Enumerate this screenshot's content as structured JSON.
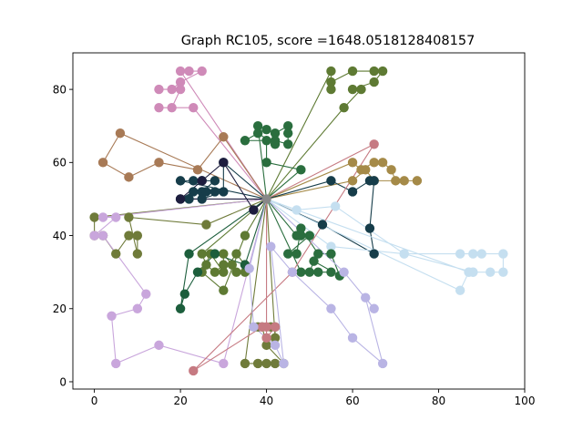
{
  "chart_data": {
    "type": "scatter",
    "title": "Graph RC105, score =1648.0518128408157",
    "xlabel": "",
    "ylabel": "",
    "xlim": [
      -5,
      100
    ],
    "ylim": [
      -2,
      90
    ],
    "xticks": [
      0,
      20,
      40,
      60,
      80,
      100
    ],
    "yticks": [
      0,
      20,
      40,
      60,
      80
    ],
    "grid": false,
    "depot": [
      40,
      50
    ],
    "routes": [
      {
        "color": "#6f7b3a",
        "points": [
          [
            35,
            5
          ],
          [
            38,
            5
          ],
          [
            40,
            5
          ],
          [
            42,
            5
          ],
          [
            44,
            5
          ],
          [
            40,
            10
          ],
          [
            39,
            15
          ],
          [
            38,
            15
          ],
          [
            41,
            15
          ],
          [
            42,
            15
          ],
          [
            42,
            12
          ]
        ]
      },
      {
        "color": "#cf8ab8",
        "points": [
          [
            20,
            85
          ],
          [
            22,
            85
          ],
          [
            25,
            85
          ],
          [
            20,
            82
          ],
          [
            18,
            80
          ],
          [
            15,
            80
          ],
          [
            20,
            80
          ],
          [
            18,
            75
          ],
          [
            15,
            75
          ],
          [
            23,
            75
          ]
        ]
      },
      {
        "color": "#5e7a33",
        "points": [
          [
            55,
            85
          ],
          [
            55,
            80
          ],
          [
            55,
            82
          ],
          [
            60,
            85
          ],
          [
            65,
            85
          ],
          [
            67,
            85
          ],
          [
            65,
            82
          ],
          [
            60,
            80
          ],
          [
            62,
            80
          ],
          [
            58,
            75
          ]
        ]
      },
      {
        "color": "#a87a56",
        "points": [
          [
            6,
            68
          ],
          [
            2,
            60
          ],
          [
            8,
            56
          ],
          [
            15,
            60
          ],
          [
            24,
            58
          ],
          [
            30,
            67
          ]
        ]
      },
      {
        "color": "#2a6e3e",
        "points": [
          [
            38,
            70
          ],
          [
            40,
            69
          ],
          [
            42,
            68
          ],
          [
            45,
            70
          ],
          [
            45,
            68
          ],
          [
            45,
            65
          ],
          [
            42,
            66
          ],
          [
            42,
            65
          ],
          [
            38,
            68
          ],
          [
            35,
            66
          ],
          [
            40,
            66
          ],
          [
            40,
            60
          ],
          [
            48,
            58
          ]
        ]
      },
      {
        "color": "#a58a48",
        "points": [
          [
            60,
            60
          ],
          [
            62,
            58
          ],
          [
            65,
            60
          ],
          [
            67,
            60
          ],
          [
            69,
            58
          ],
          [
            70,
            55
          ],
          [
            72,
            55
          ],
          [
            75,
            55
          ],
          [
            65,
            55
          ],
          [
            63,
            58
          ],
          [
            60,
            55
          ]
        ]
      },
      {
        "color": "#163d4a",
        "points": [
          [
            20,
            55
          ],
          [
            23,
            55
          ],
          [
            25,
            55
          ],
          [
            28,
            55
          ],
          [
            25,
            52
          ],
          [
            26,
            52
          ],
          [
            28,
            52
          ],
          [
            23,
            52
          ],
          [
            20,
            50
          ],
          [
            22,
            50
          ],
          [
            25,
            50
          ],
          [
            30,
            52
          ],
          [
            30,
            60
          ]
        ]
      },
      {
        "color": "#6f7b3a",
        "points": [
          [
            0,
            45
          ],
          [
            0,
            40
          ],
          [
            2,
            40
          ],
          [
            5,
            35
          ],
          [
            8,
            40
          ],
          [
            10,
            40
          ],
          [
            10,
            35
          ],
          [
            8,
            45
          ],
          [
            26,
            43
          ]
        ]
      },
      {
        "color": "#c9a6dc",
        "points": [
          [
            2,
            45
          ],
          [
            5,
            45
          ],
          [
            0,
            40
          ],
          [
            2,
            40
          ],
          [
            12,
            24
          ],
          [
            10,
            20
          ],
          [
            4,
            18
          ],
          [
            5,
            5
          ],
          [
            15,
            10
          ],
          [
            30,
            5
          ]
        ]
      },
      {
        "color": "#163d4a",
        "points": [
          [
            55,
            55
          ],
          [
            60,
            52
          ],
          [
            64,
            55
          ],
          [
            65,
            55
          ],
          [
            64,
            42
          ],
          [
            65,
            35
          ],
          [
            53,
            43
          ]
        ]
      },
      {
        "color": "#c5dff0",
        "points": [
          [
            47,
            47
          ],
          [
            56,
            48
          ],
          [
            72,
            35
          ],
          [
            85,
            35
          ],
          [
            88,
            35
          ],
          [
            90,
            35
          ],
          [
            95,
            35
          ],
          [
            95,
            30
          ],
          [
            92,
            30
          ],
          [
            88,
            30
          ],
          [
            87,
            30
          ],
          [
            85,
            25
          ]
        ]
      },
      {
        "color": "#c5dff0",
        "points": [
          [
            55,
            37
          ],
          [
            72,
            35
          ],
          [
            88,
            30
          ],
          [
            87,
            30
          ]
        ]
      },
      {
        "color": "#2a6e3e",
        "points": [
          [
            47,
            40
          ],
          [
            48,
            40
          ],
          [
            50,
            40
          ],
          [
            45,
            35
          ],
          [
            47,
            35
          ],
          [
            48,
            42
          ],
          [
            52,
            35
          ],
          [
            55,
            35
          ],
          [
            57,
            29
          ],
          [
            51,
            33
          ],
          [
            50,
            30
          ],
          [
            52,
            30
          ],
          [
            55,
            30
          ],
          [
            48,
            30
          ]
        ]
      },
      {
        "color": "#5e7a33",
        "points": [
          [
            25,
            35
          ],
          [
            26,
            32
          ],
          [
            28,
            30
          ],
          [
            30,
            32
          ],
          [
            30,
            35
          ],
          [
            32,
            32
          ],
          [
            33,
            30
          ],
          [
            35,
            30
          ],
          [
            35,
            32
          ],
          [
            33,
            35
          ],
          [
            30,
            30
          ],
          [
            27,
            35
          ],
          [
            25,
            30
          ],
          [
            30,
            25
          ],
          [
            35,
            40
          ]
        ]
      },
      {
        "color": "#1c5e3c",
        "points": [
          [
            22,
            35
          ],
          [
            20,
            20
          ],
          [
            21,
            24
          ],
          [
            24,
            30
          ],
          [
            28,
            35
          ],
          [
            35,
            32
          ]
        ]
      },
      {
        "color": "#c67a82",
        "points": [
          [
            40,
            15
          ],
          [
            40,
            12
          ],
          [
            42,
            15
          ],
          [
            39,
            15
          ],
          [
            23,
            3
          ],
          [
            46,
            30
          ],
          [
            65,
            65
          ]
        ]
      },
      {
        "color": "#b9b4e4",
        "points": [
          [
            36,
            31
          ],
          [
            37,
            15
          ],
          [
            42,
            10
          ],
          [
            44,
            5
          ],
          [
            41,
            37
          ],
          [
            46,
            30
          ],
          [
            55,
            20
          ],
          [
            60,
            12
          ],
          [
            67,
            5
          ],
          [
            63,
            23
          ],
          [
            65,
            20
          ],
          [
            58,
            30
          ]
        ]
      },
      {
        "color": "#1d1d3e",
        "points": [
          [
            37,
            47
          ],
          [
            30,
            60
          ],
          [
            25,
            55
          ],
          [
            20,
            50
          ]
        ]
      }
    ]
  }
}
